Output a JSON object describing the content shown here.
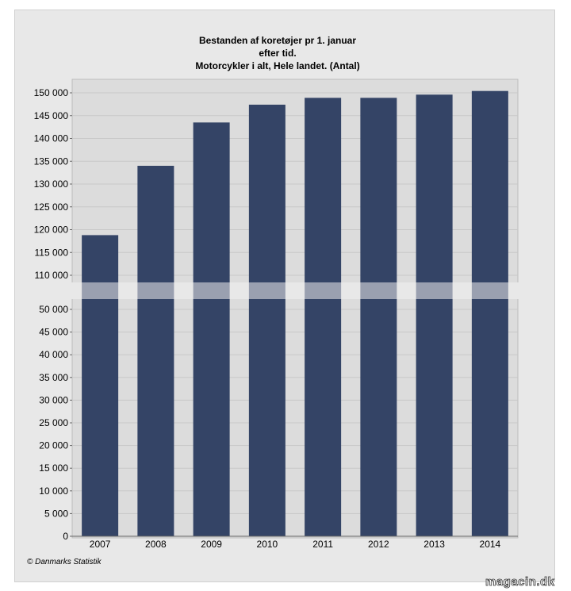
{
  "chart_data": {
    "type": "bar",
    "title": [
      "Bestanden af koretøjer pr 1. januar",
      "efter tid.",
      "Motorcykler i alt, Hele landet. (Antal)"
    ],
    "categories": [
      "2007",
      "2008",
      "2009",
      "2010",
      "2011",
      "2012",
      "2013",
      "2014"
    ],
    "values": [
      118800,
      134000,
      143500,
      147400,
      148900,
      148900,
      149600,
      150400
    ],
    "axis_break": {
      "lower_range": [
        0,
        50000
      ],
      "upper_range": [
        110000,
        150000
      ]
    },
    "ytick_labels_upper": [
      "150 000",
      "145 000",
      "140 000",
      "135 000",
      "130 000",
      "125 000",
      "120 000",
      "115 000",
      "110 000"
    ],
    "ytick_labels_lower": [
      "50 000",
      "45 000",
      "40 000",
      "35 000",
      "30 000",
      "25 000",
      "20 000",
      "15 000",
      "10 000",
      "5 000",
      "0"
    ],
    "grid": true,
    "colors": {
      "bar": "#344466",
      "break_band": "#9aa0b0",
      "plot_bg": "#dcdcdc",
      "frame_bg": "#e8e8e8"
    }
  },
  "footer": {
    "copyright": "© Danmarks Statistik",
    "watermark": "magacin.dk"
  }
}
